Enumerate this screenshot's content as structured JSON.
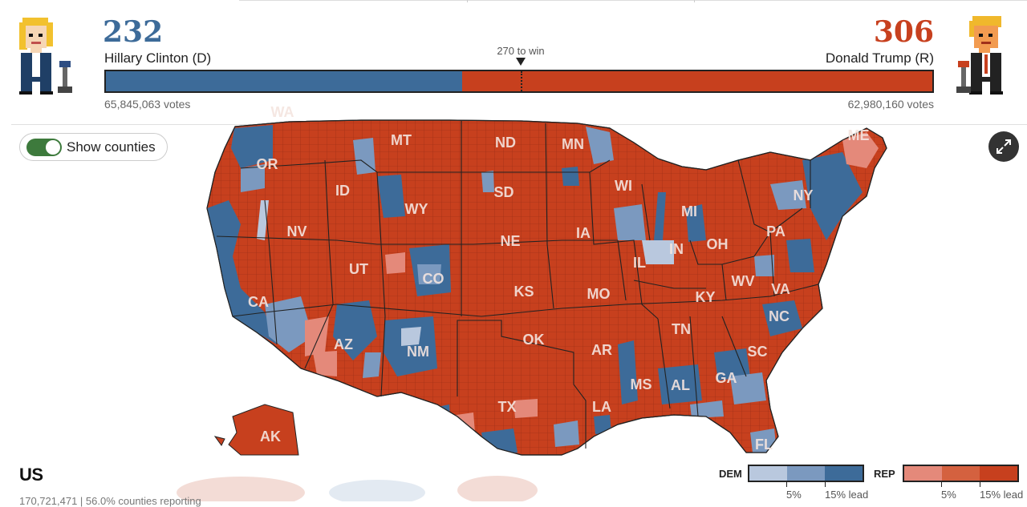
{
  "header": {
    "dem": {
      "electoral_votes": "232",
      "candidate": "Hillary Clinton (D)",
      "popular_votes": "65,845,063 votes",
      "color": "#3d6b99",
      "avatar": "clinton-pixel-avatar",
      "share": 0.431
    },
    "rep": {
      "electoral_votes": "306",
      "candidate": "Donald Trump (R)",
      "popular_votes": "62,980,160 votes",
      "color": "#c7401e",
      "avatar": "trump-pixel-avatar",
      "share": 0.569
    },
    "threshold_label": "270 to win",
    "threshold_fraction": 0.5019
  },
  "controls": {
    "toggle_label": "Show counties",
    "toggle_on": true,
    "expand_icon": "expand-icon"
  },
  "map": {
    "region": "US",
    "state_labels": [
      "WA",
      "MT",
      "ND",
      "MN",
      "OR",
      "ID",
      "SD",
      "WI",
      "NY",
      "ME",
      "WY",
      "MI",
      "NV",
      "NE",
      "IA",
      "PA",
      "UT",
      "IN",
      "OH",
      "CO",
      "IL",
      "WV",
      "VA",
      "CA",
      "KS",
      "MO",
      "KY",
      "NC",
      "AZ",
      "OK",
      "TN",
      "AR",
      "SC",
      "NM",
      "GA",
      "AL",
      "MS",
      "TX",
      "LA",
      "AK",
      "FL"
    ]
  },
  "footer": {
    "subtext": "170,721,471 | 56.0% counties reporting"
  },
  "legend": {
    "dem_label": "DEM",
    "rep_label": "REP",
    "tick_5": "5%",
    "tick_15": "15% lead",
    "dem_colors": [
      "#b9c8de",
      "#7b99bf",
      "#3d6b99"
    ],
    "rep_colors": [
      "#e4897a",
      "#d4613f",
      "#c7401e"
    ]
  }
}
